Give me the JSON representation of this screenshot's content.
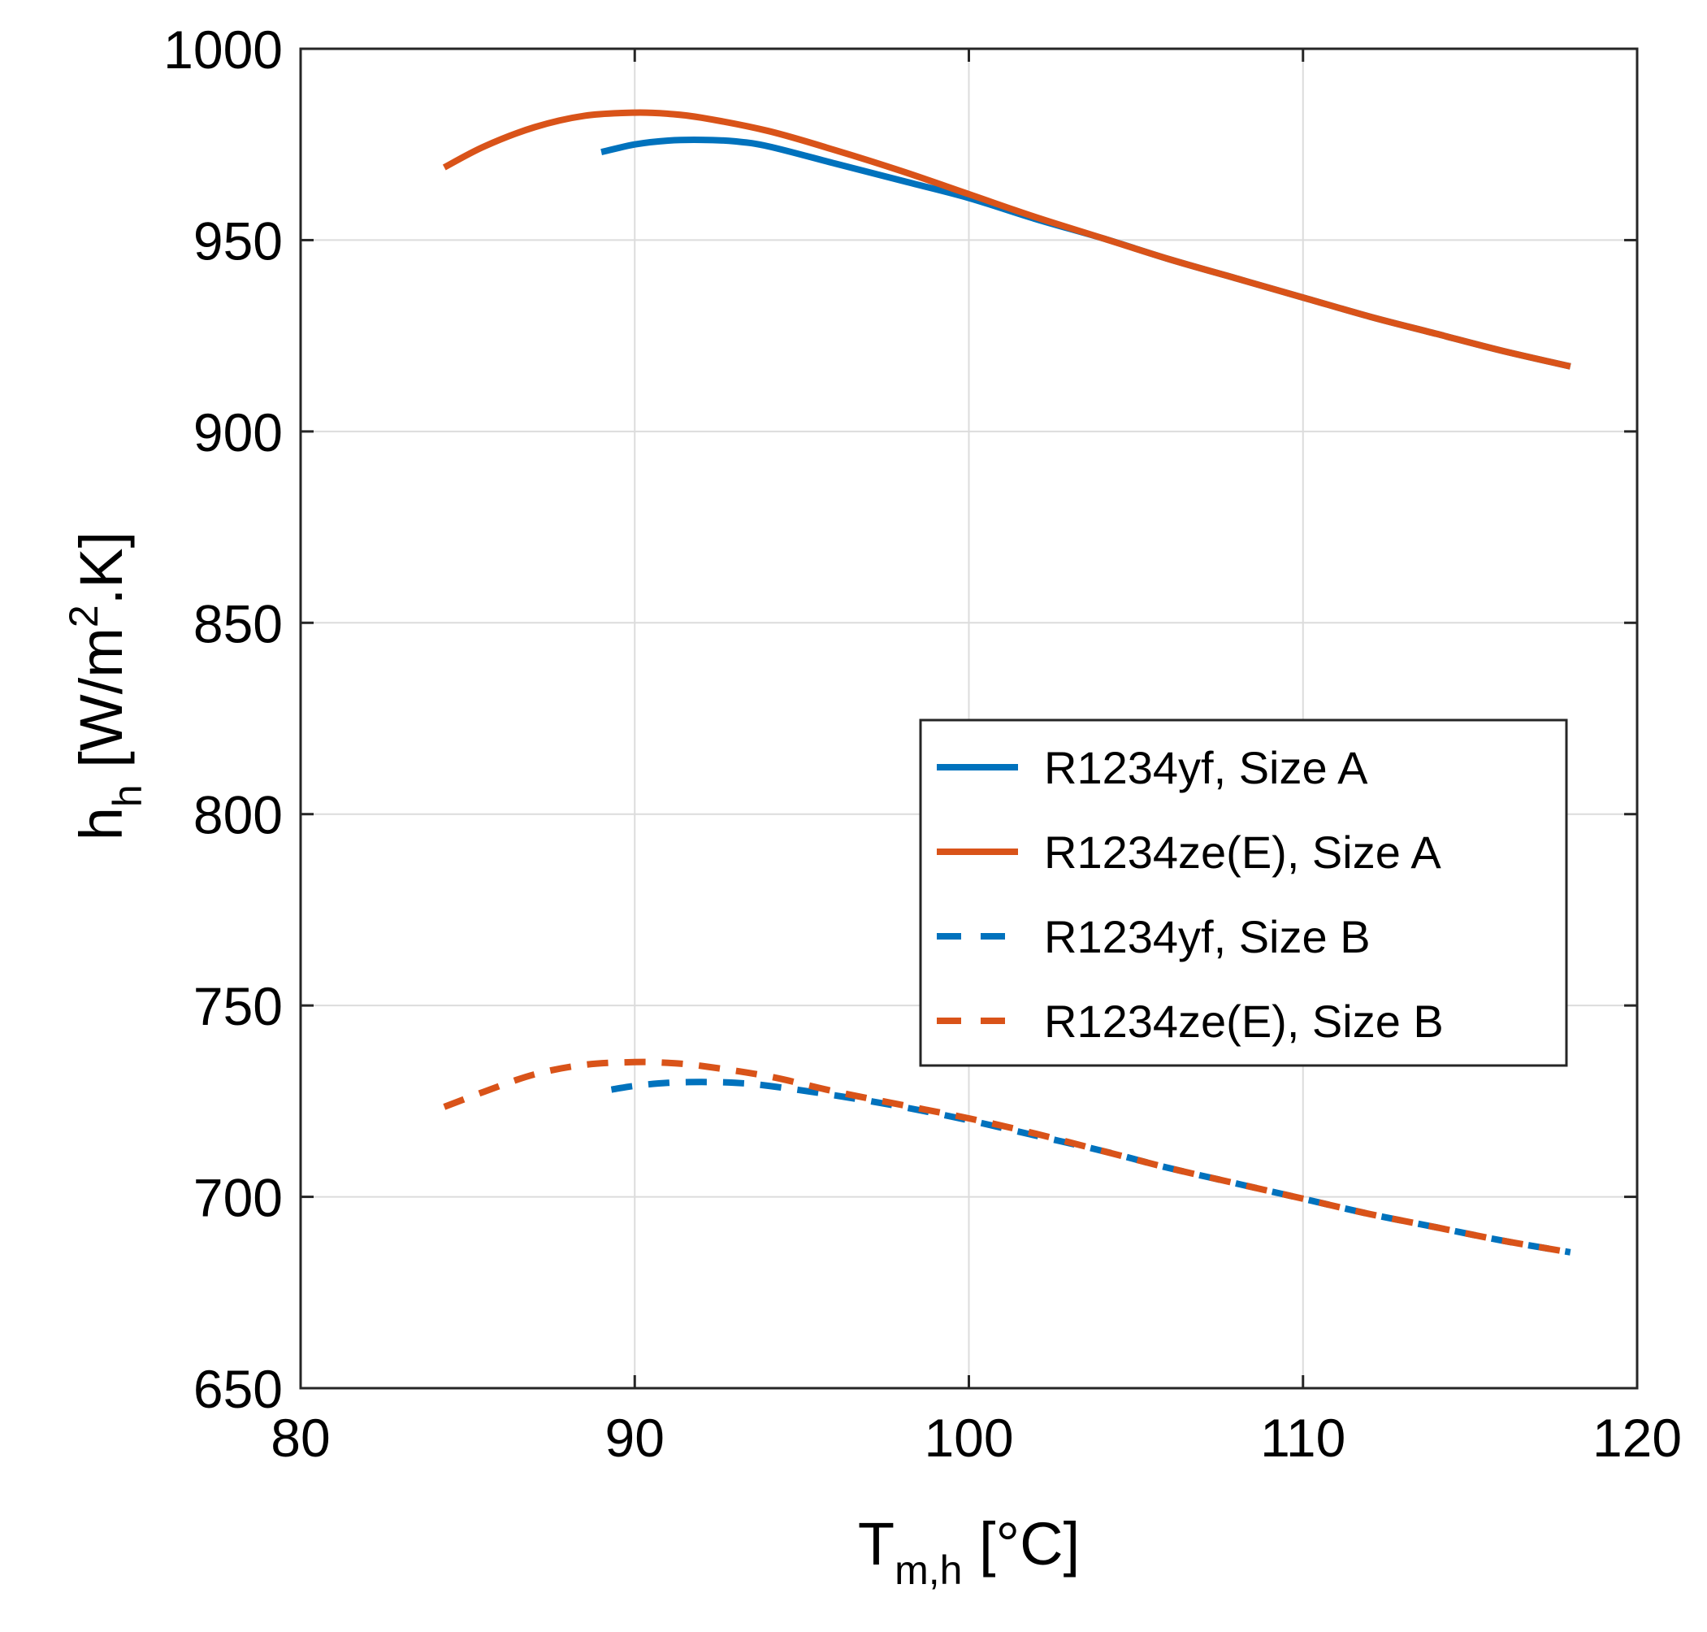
{
  "chart_data": {
    "type": "line",
    "x_range": [
      80,
      120
    ],
    "y_range": [
      650,
      1000
    ],
    "x_ticks": [
      80,
      90,
      100,
      110,
      120
    ],
    "y_ticks": [
      650,
      700,
      750,
      800,
      850,
      900,
      950,
      1000
    ],
    "grid": true,
    "xlabel": {
      "main": "T",
      "sub": "m,h",
      "unit": " [°C]"
    },
    "ylabel": {
      "main": "h",
      "sub": "h",
      "unit_pre": " [W/m",
      "unit_sup": "2",
      "unit_post": ".K]"
    },
    "legend_position": "center-right",
    "series": [
      {
        "name": "R1234yf, Size A",
        "color": "#0072BD",
        "dash": "solid",
        "x": [
          89,
          90,
          91,
          92,
          93,
          94,
          96,
          98,
          100,
          102,
          104,
          106,
          108,
          110,
          112,
          114,
          116,
          118
        ],
        "y": [
          973,
          975,
          976,
          976.2,
          975.8,
          974.5,
          970,
          965.5,
          961,
          955.5,
          950.5,
          945,
          940,
          935,
          930,
          925.5,
          921,
          917
        ]
      },
      {
        "name": "R1234ze(E), Size A",
        "color": "#D95319",
        "dash": "solid",
        "x": [
          84.3,
          85.5,
          87,
          88.5,
          90,
          91,
          92,
          94,
          96,
          98,
          100,
          102,
          104,
          106,
          108,
          110,
          112,
          114,
          116,
          118
        ],
        "y": [
          969,
          974.5,
          979.5,
          982.5,
          983.3,
          983,
          982,
          978.5,
          973.5,
          968,
          962,
          956,
          950.5,
          945,
          940,
          935,
          930,
          925.5,
          921,
          917
        ]
      },
      {
        "name": "R1234yf, Size B",
        "color": "#0072BD",
        "dash": "dashed",
        "x": [
          89.3,
          90,
          91,
          92,
          93,
          94,
          96,
          98,
          100,
          102,
          104,
          106,
          108,
          110,
          112,
          114,
          116,
          118
        ],
        "y": [
          728,
          729,
          729.8,
          730,
          729.8,
          729,
          726.5,
          723.5,
          720,
          716,
          712,
          707.5,
          703.5,
          699.5,
          695.5,
          692,
          688.5,
          685.5
        ]
      },
      {
        "name": "R1234ze(E), Size B",
        "color": "#D95319",
        "dash": "dashed",
        "x": [
          84.3,
          85.5,
          87,
          88.5,
          90,
          91,
          92,
          94,
          96,
          98,
          100,
          102,
          104,
          106,
          108,
          110,
          112,
          114,
          116,
          118
        ],
        "y": [
          723.5,
          727.5,
          732,
          734.5,
          735.2,
          735,
          734.2,
          731.5,
          727.5,
          724,
          720.5,
          716.5,
          712,
          707.5,
          703.5,
          699.5,
          695.5,
          692,
          688.5,
          685.5
        ]
      }
    ]
  }
}
